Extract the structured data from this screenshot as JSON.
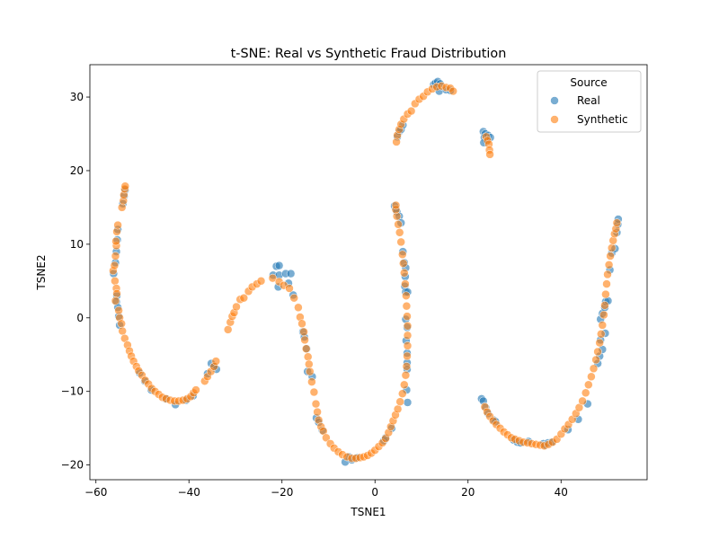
{
  "chart_data": {
    "type": "scatter",
    "title": "t-SNE: Real vs Synthetic Fraud Distribution",
    "xlabel": "TSNE1",
    "ylabel": "TSNE2",
    "xlim": [
      -61.3,
      58.5
    ],
    "ylim": [
      -22.0,
      34.4
    ],
    "xticks": [
      -60,
      -40,
      -20,
      0,
      20,
      40
    ],
    "yticks": [
      -20,
      -10,
      0,
      10,
      20,
      30
    ],
    "grid": false,
    "legend": {
      "title": "Source",
      "placement": "top-right"
    },
    "series": [
      {
        "name": "Real",
        "color": "#1f77b4",
        "points": [
          [
            -56.2,
            6.0
          ],
          [
            -55.8,
            7.5
          ],
          [
            -55.6,
            9.0
          ],
          [
            -55.4,
            10.6
          ],
          [
            -55.3,
            12.0
          ],
          [
            -55.5,
            3.0
          ],
          [
            -55.6,
            2.2
          ],
          [
            -55.3,
            1.4
          ],
          [
            -55.1,
            0.2
          ],
          [
            -54.9,
            -1.0
          ],
          [
            -54.2,
            15.5
          ],
          [
            -53.9,
            16.6
          ],
          [
            -53.7,
            17.4
          ],
          [
            -50.6,
            -7.5
          ],
          [
            -49.5,
            -8.6
          ],
          [
            -48.1,
            -9.8
          ],
          [
            -45.0,
            -11.0
          ],
          [
            -42.9,
            -11.8
          ],
          [
            -40.6,
            -11.2
          ],
          [
            -39.1,
            -10.6
          ],
          [
            -35.2,
            -6.2
          ],
          [
            -34.6,
            -6.6
          ],
          [
            -34.1,
            -7.0
          ],
          [
            -36.0,
            -7.6
          ],
          [
            -21.2,
            7.0
          ],
          [
            -20.6,
            7.1
          ],
          [
            -21.9,
            5.8
          ],
          [
            -20.6,
            5.8
          ],
          [
            -19.2,
            6.0
          ],
          [
            -18.1,
            6.0
          ],
          [
            -20.8,
            4.2
          ],
          [
            -18.6,
            4.7
          ],
          [
            -17.6,
            3.1
          ],
          [
            -15.5,
            -1.9
          ],
          [
            -15.2,
            -2.6
          ],
          [
            -14.7,
            -4.2
          ],
          [
            -14.5,
            -7.3
          ],
          [
            -13.5,
            -8.0
          ],
          [
            -12.6,
            -13.6
          ],
          [
            -12.1,
            -14.2
          ],
          [
            -11.3,
            -15.3
          ],
          [
            -6.4,
            -19.6
          ],
          [
            -5.6,
            -18.9
          ],
          [
            -5.0,
            -19.3
          ],
          [
            -3.9,
            -19.0
          ],
          [
            1.9,
            -16.7
          ],
          [
            2.3,
            -16.3
          ],
          [
            3.6,
            -15.0
          ],
          [
            4.2,
            15.2
          ],
          [
            4.5,
            14.8
          ],
          [
            4.7,
            14.4
          ],
          [
            5.2,
            13.8
          ],
          [
            5.6,
            12.9
          ],
          [
            6.0,
            9.0
          ],
          [
            6.3,
            7.5
          ],
          [
            6.6,
            6.8
          ],
          [
            6.5,
            5.6
          ],
          [
            6.4,
            4.3
          ],
          [
            6.6,
            3.5
          ],
          [
            7.0,
            3.5
          ],
          [
            6.6,
            -0.2
          ],
          [
            6.9,
            -1.3
          ],
          [
            6.7,
            -3.1
          ],
          [
            6.9,
            -4.8
          ],
          [
            6.9,
            -6.1
          ],
          [
            6.9,
            -7.0
          ],
          [
            6.8,
            -9.8
          ],
          [
            7.0,
            -11.5
          ],
          [
            4.8,
            24.6
          ],
          [
            5.2,
            25.3
          ],
          [
            5.6,
            25.6
          ],
          [
            6.0,
            26.2
          ],
          [
            12.6,
            31.7
          ],
          [
            13.0,
            31.9
          ],
          [
            13.5,
            32.1
          ],
          [
            14.0,
            31.8
          ],
          [
            13.3,
            31.3
          ],
          [
            13.8,
            30.8
          ],
          [
            15.3,
            31.0
          ],
          [
            16.2,
            30.9
          ],
          [
            23.3,
            25.3
          ],
          [
            23.7,
            25.0
          ],
          [
            23.5,
            24.5
          ],
          [
            24.0,
            24.1
          ],
          [
            24.3,
            24.8
          ],
          [
            24.8,
            24.5
          ],
          [
            23.4,
            23.8
          ],
          [
            22.9,
            -11.0
          ],
          [
            23.3,
            -11.3
          ],
          [
            23.8,
            -12.2
          ],
          [
            24.3,
            -13.0
          ],
          [
            25.5,
            -13.9
          ],
          [
            25.9,
            -14.1
          ],
          [
            29.8,
            -16.6
          ],
          [
            30.6,
            -16.9
          ],
          [
            31.3,
            -17.0
          ],
          [
            33.0,
            -16.8
          ],
          [
            36.2,
            -17.1
          ],
          [
            36.6,
            -17.3
          ],
          [
            37.2,
            -17.0
          ],
          [
            38.0,
            -16.9
          ],
          [
            41.5,
            -15.2
          ],
          [
            43.7,
            -13.8
          ],
          [
            45.7,
            -11.7
          ],
          [
            47.9,
            -6.2
          ],
          [
            48.3,
            -5.2
          ],
          [
            48.9,
            -4.3
          ],
          [
            48.5,
            -3.0
          ],
          [
            49.5,
            -2.1
          ],
          [
            48.5,
            -0.2
          ],
          [
            48.9,
            0.6
          ],
          [
            49.4,
            1.4
          ],
          [
            49.6,
            2.2
          ],
          [
            50.1,
            2.3
          ],
          [
            50.5,
            6.5
          ],
          [
            50.9,
            8.8
          ],
          [
            51.6,
            9.4
          ],
          [
            52.0,
            11.6
          ],
          [
            52.2,
            12.7
          ],
          [
            52.3,
            13.4
          ]
        ]
      },
      {
        "name": "Synthetic",
        "color": "#ff7f0e",
        "points": [
          [
            -56.3,
            6.4
          ],
          [
            -56.0,
            7.1
          ],
          [
            -55.8,
            8.4
          ],
          [
            -55.6,
            9.8
          ],
          [
            -55.7,
            10.4
          ],
          [
            -55.5,
            11.7
          ],
          [
            -55.3,
            12.6
          ],
          [
            -55.9,
            5.0
          ],
          [
            -55.6,
            4.0
          ],
          [
            -55.5,
            3.3
          ],
          [
            -55.8,
            2.3
          ],
          [
            -55.1,
            1.0
          ],
          [
            -54.9,
            0.0
          ],
          [
            -54.5,
            -0.8
          ],
          [
            -54.3,
            -1.8
          ],
          [
            -54.4,
            15.0
          ],
          [
            -54.1,
            15.9
          ],
          [
            -54.0,
            16.7
          ],
          [
            -53.8,
            17.5
          ],
          [
            -53.7,
            17.9
          ],
          [
            -53.8,
            -2.8
          ],
          [
            -53.2,
            -3.7
          ],
          [
            -52.8,
            -4.5
          ],
          [
            -52.4,
            -5.2
          ],
          [
            -51.9,
            -5.9
          ],
          [
            -51.3,
            -6.6
          ],
          [
            -50.8,
            -7.2
          ],
          [
            -50.1,
            -7.8
          ],
          [
            -49.4,
            -8.5
          ],
          [
            -48.7,
            -9.0
          ],
          [
            -48.0,
            -9.6
          ],
          [
            -47.3,
            -10.0
          ],
          [
            -46.5,
            -10.4
          ],
          [
            -45.7,
            -10.8
          ],
          [
            -44.9,
            -11.0
          ],
          [
            -44.0,
            -11.2
          ],
          [
            -43.1,
            -11.3
          ],
          [
            -42.2,
            -11.3
          ],
          [
            -41.3,
            -11.2
          ],
          [
            -40.4,
            -11.0
          ],
          [
            -39.6,
            -10.7
          ],
          [
            -39.0,
            -10.2
          ],
          [
            -38.5,
            -9.8
          ],
          [
            -36.6,
            -8.6
          ],
          [
            -36.0,
            -8.0
          ],
          [
            -35.3,
            -7.3
          ],
          [
            -34.6,
            -6.6
          ],
          [
            -34.2,
            -5.9
          ],
          [
            -31.6,
            -1.6
          ],
          [
            -31.1,
            -0.6
          ],
          [
            -30.7,
            0.2
          ],
          [
            -30.3,
            0.7
          ],
          [
            -29.8,
            1.5
          ],
          [
            -29.0,
            2.5
          ],
          [
            -28.2,
            2.7
          ],
          [
            -27.2,
            3.6
          ],
          [
            -26.4,
            4.2
          ],
          [
            -25.4,
            4.6
          ],
          [
            -24.5,
            5.0
          ],
          [
            -22.0,
            5.4
          ],
          [
            -20.6,
            4.9
          ],
          [
            -19.6,
            4.4
          ],
          [
            -18.4,
            4.0
          ],
          [
            -17.4,
            2.7
          ],
          [
            -16.5,
            1.4
          ],
          [
            -16.1,
            0.1
          ],
          [
            -15.7,
            -0.8
          ],
          [
            -15.3,
            -1.9
          ],
          [
            -15.1,
            -3.0
          ],
          [
            -14.8,
            -4.2
          ],
          [
            -14.4,
            -5.3
          ],
          [
            -14.2,
            -6.3
          ],
          [
            -14.0,
            -7.3
          ],
          [
            -13.6,
            -8.7
          ],
          [
            -13.1,
            -10.1
          ],
          [
            -12.7,
            -11.7
          ],
          [
            -12.4,
            -12.8
          ],
          [
            -12.1,
            -13.9
          ],
          [
            -11.6,
            -14.8
          ],
          [
            -11.1,
            -15.4
          ],
          [
            -10.5,
            -16.3
          ],
          [
            -9.6,
            -17.1
          ],
          [
            -8.8,
            -17.7
          ],
          [
            -7.9,
            -18.2
          ],
          [
            -7.0,
            -18.6
          ],
          [
            -6.0,
            -18.9
          ],
          [
            -5.0,
            -19.1
          ],
          [
            -4.1,
            -19.1
          ],
          [
            -3.2,
            -19.0
          ],
          [
            -2.4,
            -18.9
          ],
          [
            -1.6,
            -18.7
          ],
          [
            -0.8,
            -18.4
          ],
          [
            0.0,
            -18.0
          ],
          [
            0.8,
            -17.5
          ],
          [
            1.6,
            -17.0
          ],
          [
            2.3,
            -16.4
          ],
          [
            2.9,
            -15.6
          ],
          [
            3.4,
            -14.8
          ],
          [
            3.9,
            -14.0
          ],
          [
            4.4,
            -13.2
          ],
          [
            4.9,
            -12.4
          ],
          [
            5.4,
            -11.4
          ],
          [
            5.9,
            -10.3
          ],
          [
            6.3,
            -9.1
          ],
          [
            6.6,
            -7.8
          ],
          [
            6.8,
            -6.6
          ],
          [
            6.9,
            -5.2
          ],
          [
            7.0,
            -3.8
          ],
          [
            7.0,
            -2.4
          ],
          [
            7.0,
            -1.1
          ],
          [
            6.9,
            0.2
          ],
          [
            6.8,
            1.6
          ],
          [
            6.7,
            3.0
          ],
          [
            6.5,
            4.6
          ],
          [
            6.3,
            6.1
          ],
          [
            6.1,
            7.4
          ],
          [
            5.9,
            8.6
          ],
          [
            5.6,
            10.3
          ],
          [
            5.3,
            11.6
          ],
          [
            5.0,
            12.7
          ],
          [
            4.7,
            13.8
          ],
          [
            4.5,
            14.7
          ],
          [
            4.5,
            15.3
          ],
          [
            4.6,
            23.9
          ],
          [
            4.8,
            24.8
          ],
          [
            5.2,
            25.6
          ],
          [
            5.6,
            26.3
          ],
          [
            6.2,
            27.0
          ],
          [
            7.0,
            27.7
          ],
          [
            7.8,
            28.1
          ],
          [
            8.6,
            29.1
          ],
          [
            9.5,
            29.7
          ],
          [
            10.4,
            30.1
          ],
          [
            11.3,
            30.7
          ],
          [
            12.3,
            31.1
          ],
          [
            13.3,
            31.4
          ],
          [
            14.3,
            31.5
          ],
          [
            15.3,
            31.3
          ],
          [
            16.2,
            31.2
          ],
          [
            16.8,
            30.8
          ],
          [
            23.9,
            24.6
          ],
          [
            24.2,
            24.1
          ],
          [
            24.5,
            23.6
          ],
          [
            24.6,
            22.8
          ],
          [
            24.7,
            22.2
          ],
          [
            23.6,
            -12.1
          ],
          [
            24.1,
            -12.8
          ],
          [
            24.7,
            -13.4
          ],
          [
            25.4,
            -14.0
          ],
          [
            26.1,
            -14.5
          ],
          [
            26.9,
            -15.0
          ],
          [
            27.7,
            -15.5
          ],
          [
            28.5,
            -15.9
          ],
          [
            29.3,
            -16.3
          ],
          [
            30.1,
            -16.5
          ],
          [
            31.0,
            -16.7
          ],
          [
            31.9,
            -16.9
          ],
          [
            32.8,
            -17.0
          ],
          [
            33.7,
            -17.1
          ],
          [
            34.6,
            -17.2
          ],
          [
            35.5,
            -17.3
          ],
          [
            36.4,
            -17.4
          ],
          [
            37.3,
            -17.2
          ],
          [
            38.2,
            -16.9
          ],
          [
            39.1,
            -16.5
          ],
          [
            40.0,
            -15.8
          ],
          [
            40.8,
            -15.1
          ],
          [
            41.6,
            -14.5
          ],
          [
            42.4,
            -13.8
          ],
          [
            43.2,
            -13.0
          ],
          [
            43.9,
            -12.2
          ],
          [
            44.6,
            -11.3
          ],
          [
            45.3,
            -10.2
          ],
          [
            45.9,
            -9.1
          ],
          [
            46.5,
            -8.0
          ],
          [
            47.0,
            -6.9
          ],
          [
            47.5,
            -5.7
          ],
          [
            47.9,
            -4.6
          ],
          [
            48.3,
            -3.4
          ],
          [
            48.6,
            -2.2
          ],
          [
            48.9,
            -1.0
          ],
          [
            49.2,
            0.4
          ],
          [
            49.4,
            1.7
          ],
          [
            49.6,
            3.2
          ],
          [
            49.8,
            4.6
          ],
          [
            50.0,
            5.9
          ],
          [
            50.3,
            7.2
          ],
          [
            50.6,
            8.4
          ],
          [
            50.9,
            9.5
          ],
          [
            51.2,
            10.5
          ],
          [
            51.5,
            11.4
          ],
          [
            51.8,
            12.1
          ],
          [
            52.0,
            12.9
          ]
        ]
      }
    ]
  }
}
